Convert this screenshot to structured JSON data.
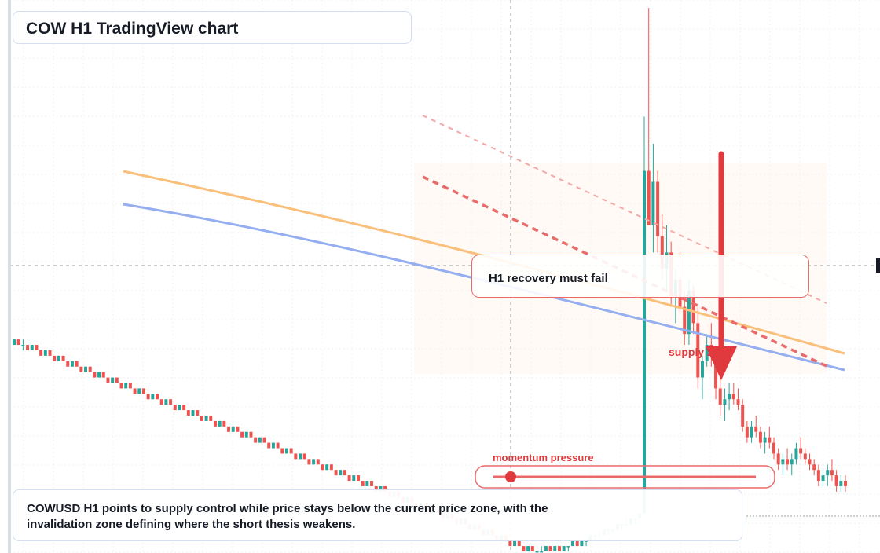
{
  "title": "COW H1 TradingView chart",
  "annotations": {
    "recovery": "H1 recovery must fail",
    "supply": "supply zone",
    "momentum": "momentum pressure"
  },
  "summary": "COWUSD H1 points to supply control while price stays below the current price zone, with the invalidation zone defining where the short thesis weakens.",
  "colors": {
    "up": "#26a69a",
    "down": "#ef5350",
    "ema_fast": "#f8c07a",
    "ema_slow": "#94aef0",
    "annotation_red": "#e0393e",
    "grid": "#eef0f3"
  },
  "chart_data": {
    "type": "candlestick",
    "symbol": "COWUSD",
    "timeframe": "H1",
    "ylim": [
      0,
      100
    ],
    "candles": [
      [
        38,
        39,
        38,
        39
      ],
      [
        39,
        39,
        38,
        38
      ],
      [
        38,
        39,
        37,
        38
      ],
      [
        38,
        38,
        37,
        37
      ],
      [
        37,
        38,
        37,
        38
      ],
      [
        38,
        38,
        37,
        37
      ],
      [
        37,
        37,
        36,
        36
      ],
      [
        36,
        37,
        36,
        37
      ],
      [
        37,
        37,
        36,
        36
      ],
      [
        36,
        36,
        35,
        35
      ],
      [
        35,
        36,
        35,
        36
      ],
      [
        36,
        36,
        35,
        35
      ],
      [
        35,
        35,
        34,
        34
      ],
      [
        34,
        35,
        34,
        35
      ],
      [
        35,
        35,
        34,
        34
      ],
      [
        34,
        34,
        33,
        33
      ],
      [
        33,
        34,
        33,
        34
      ],
      [
        34,
        34,
        33,
        33
      ],
      [
        33,
        33,
        32,
        32
      ],
      [
        32,
        33,
        32,
        33
      ],
      [
        33,
        33,
        32,
        32
      ],
      [
        32,
        32,
        31,
        31
      ],
      [
        31,
        32,
        31,
        32
      ],
      [
        32,
        32,
        31,
        31
      ],
      [
        31,
        31,
        30,
        30
      ],
      [
        30,
        31,
        30,
        31
      ],
      [
        31,
        31,
        30,
        30
      ],
      [
        30,
        30,
        29,
        29
      ],
      [
        29,
        30,
        29,
        30
      ],
      [
        30,
        30,
        29,
        29
      ],
      [
        29,
        29,
        28,
        28
      ],
      [
        28,
        29,
        28,
        29
      ],
      [
        29,
        29,
        28,
        28
      ],
      [
        28,
        28,
        27,
        27
      ],
      [
        27,
        28,
        27,
        28
      ],
      [
        28,
        28,
        27,
        27
      ],
      [
        27,
        27,
        26,
        26
      ],
      [
        26,
        27,
        26,
        27
      ],
      [
        27,
        27,
        26,
        26
      ],
      [
        26,
        26,
        25,
        25
      ],
      [
        25,
        26,
        25,
        26
      ],
      [
        26,
        26,
        25,
        25
      ],
      [
        25,
        25,
        24,
        24
      ],
      [
        24,
        25,
        24,
        25
      ],
      [
        25,
        25,
        24,
        24
      ],
      [
        24,
        24,
        23,
        23
      ],
      [
        23,
        24,
        23,
        24
      ],
      [
        24,
        24,
        23,
        23
      ],
      [
        23,
        23,
        22,
        22
      ],
      [
        22,
        23,
        22,
        23
      ],
      [
        23,
        23,
        22,
        22
      ],
      [
        22,
        22,
        21,
        21
      ],
      [
        21,
        22,
        21,
        22
      ],
      [
        22,
        22,
        21,
        21
      ],
      [
        21,
        21,
        20,
        20
      ],
      [
        20,
        21,
        20,
        21
      ],
      [
        21,
        21,
        20,
        20
      ],
      [
        20,
        20,
        19,
        19
      ],
      [
        19,
        20,
        19,
        20
      ],
      [
        20,
        20,
        19,
        19
      ],
      [
        19,
        19,
        18,
        18
      ],
      [
        18,
        19,
        18,
        19
      ],
      [
        19,
        19,
        18,
        18
      ],
      [
        18,
        18,
        17,
        17
      ],
      [
        17,
        18,
        17,
        18
      ],
      [
        18,
        18,
        17,
        17
      ],
      [
        17,
        17,
        16,
        16
      ],
      [
        16,
        17,
        16,
        17
      ],
      [
        17,
        17,
        16,
        16
      ],
      [
        16,
        16,
        15,
        15
      ],
      [
        15,
        16,
        15,
        16
      ],
      [
        16,
        16,
        15,
        15
      ],
      [
        15,
        15,
        14,
        14
      ],
      [
        14,
        15,
        14,
        15
      ],
      [
        15,
        15,
        14,
        14
      ],
      [
        14,
        14,
        13,
        13
      ],
      [
        13,
        14,
        13,
        14
      ],
      [
        14,
        14,
        13,
        13
      ],
      [
        13,
        13,
        12,
        12
      ],
      [
        12,
        13,
        12,
        13
      ],
      [
        13,
        13,
        12,
        12
      ],
      [
        12,
        12,
        11,
        11
      ],
      [
        11,
        12,
        11,
        12
      ],
      [
        12,
        12,
        11,
        11
      ],
      [
        11,
        11,
        10,
        10
      ],
      [
        10,
        11,
        10,
        11
      ],
      [
        11,
        11,
        10,
        10
      ],
      [
        10,
        10,
        9,
        9
      ],
      [
        9,
        10,
        9,
        10
      ],
      [
        10,
        10,
        9,
        9
      ],
      [
        9,
        9,
        8,
        8
      ],
      [
        8,
        9,
        8,
        9
      ],
      [
        9,
        9,
        8,
        8
      ],
      [
        8,
        8,
        7,
        7
      ],
      [
        7,
        8,
        7,
        8
      ],
      [
        8,
        8,
        7,
        7
      ],
      [
        7,
        7,
        6,
        6
      ],
      [
        6,
        7,
        6,
        7
      ],
      [
        7,
        7,
        6,
        6
      ],
      [
        6,
        6,
        5,
        5
      ],
      [
        5,
        6,
        5,
        6
      ],
      [
        6,
        6,
        5,
        5
      ],
      [
        5,
        5,
        4,
        4
      ],
      [
        4,
        5,
        4,
        5
      ],
      [
        5,
        5,
        4,
        4
      ],
      [
        4,
        4,
        3,
        3
      ],
      [
        3,
        4,
        3,
        4
      ],
      [
        4,
        4,
        3,
        3
      ],
      [
        3,
        3,
        2,
        2
      ],
      [
        2,
        3,
        2,
        3
      ],
      [
        3,
        3,
        2,
        2
      ],
      [
        2,
        2,
        1,
        1
      ],
      [
        1,
        2,
        1,
        2
      ],
      [
        2,
        2,
        1,
        1
      ],
      [
        1,
        1,
        0,
        0
      ],
      [
        0,
        1,
        0,
        1
      ],
      [
        1,
        1,
        0,
        0
      ],
      [
        0,
        0,
        0,
        0
      ],
      [
        0,
        1,
        0,
        0
      ],
      [
        0,
        1,
        0,
        1
      ],
      [
        1,
        1,
        0,
        0
      ],
      [
        0,
        1,
        0,
        1
      ],
      [
        1,
        1,
        0,
        0
      ],
      [
        0,
        1,
        0,
        1
      ],
      [
        1,
        1,
        0,
        1
      ],
      [
        1,
        2,
        1,
        2
      ],
      [
        2,
        2,
        1,
        1
      ],
      [
        1,
        2,
        1,
        2
      ],
      [
        2,
        2,
        1,
        2
      ],
      [
        2,
        3,
        2,
        3
      ],
      [
        3,
        3,
        2,
        3
      ],
      [
        3,
        4,
        3,
        3
      ],
      [
        3,
        4,
        3,
        4
      ],
      [
        4,
        4,
        3,
        4
      ],
      [
        4,
        4,
        3,
        4
      ],
      [
        4,
        5,
        4,
        5
      ],
      [
        5,
        5,
        4,
        5
      ],
      [
        5,
        6,
        5,
        5
      ],
      [
        5,
        6,
        5,
        6
      ],
      [
        6,
        6,
        5,
        6
      ],
      [
        6,
        7,
        6,
        7
      ],
      [
        7,
        80,
        7,
        70
      ],
      [
        70,
        100,
        60,
        60
      ],
      [
        60,
        75,
        55,
        68
      ],
      [
        68,
        70,
        55,
        58
      ],
      [
        58,
        62,
        50,
        52
      ],
      [
        52,
        60,
        48,
        55
      ],
      [
        55,
        57,
        45,
        47
      ],
      [
        47,
        52,
        42,
        50
      ],
      [
        50,
        55,
        44,
        45
      ],
      [
        45,
        48,
        38,
        40
      ],
      [
        40,
        50,
        38,
        48
      ],
      [
        48,
        49,
        40,
        42
      ],
      [
        42,
        45,
        30,
        32
      ],
      [
        32,
        36,
        28,
        35
      ],
      [
        35,
        40,
        34,
        38
      ],
      [
        38,
        42,
        34,
        36
      ],
      [
        36,
        37,
        28,
        30
      ],
      [
        30,
        32,
        25,
        27
      ],
      [
        27,
        30,
        24,
        28
      ],
      [
        28,
        31,
        26,
        29
      ],
      [
        29,
        31,
        27,
        28
      ],
      [
        28,
        30,
        26,
        27
      ],
      [
        27,
        28,
        22,
        23
      ],
      [
        23,
        24,
        20,
        21
      ],
      [
        21,
        24,
        20,
        23
      ],
      [
        23,
        25,
        21,
        22
      ],
      [
        22,
        23,
        19,
        20
      ],
      [
        20,
        22,
        18,
        21
      ],
      [
        21,
        23,
        19,
        20
      ],
      [
        20,
        21,
        17,
        18
      ],
      [
        18,
        19,
        15,
        16
      ],
      [
        16,
        18,
        14,
        17
      ],
      [
        17,
        19,
        15,
        16
      ],
      [
        16,
        18,
        14,
        17
      ],
      [
        17,
        20,
        16,
        19
      ],
      [
        19,
        21,
        17,
        18
      ],
      [
        18,
        19,
        16,
        17
      ],
      [
        17,
        18,
        15,
        16
      ],
      [
        16,
        17,
        14,
        15
      ],
      [
        15,
        16,
        12,
        13
      ],
      [
        13,
        15,
        12,
        14
      ],
      [
        14,
        16,
        12,
        15
      ],
      [
        15,
        17,
        13,
        14
      ],
      [
        14,
        15,
        11,
        12
      ],
      [
        12,
        14,
        11,
        13
      ],
      [
        13,
        14,
        11,
        12
      ]
    ],
    "ema_fast": [
      [
        0,
        62
      ],
      [
        1,
        40
      ]
    ],
    "ema_slow": [
      [
        0,
        58
      ],
      [
        1,
        37
      ]
    ],
    "supply_zone": [
      35,
      65
    ],
    "momentum_level": 14,
    "current_price_level": 48
  }
}
